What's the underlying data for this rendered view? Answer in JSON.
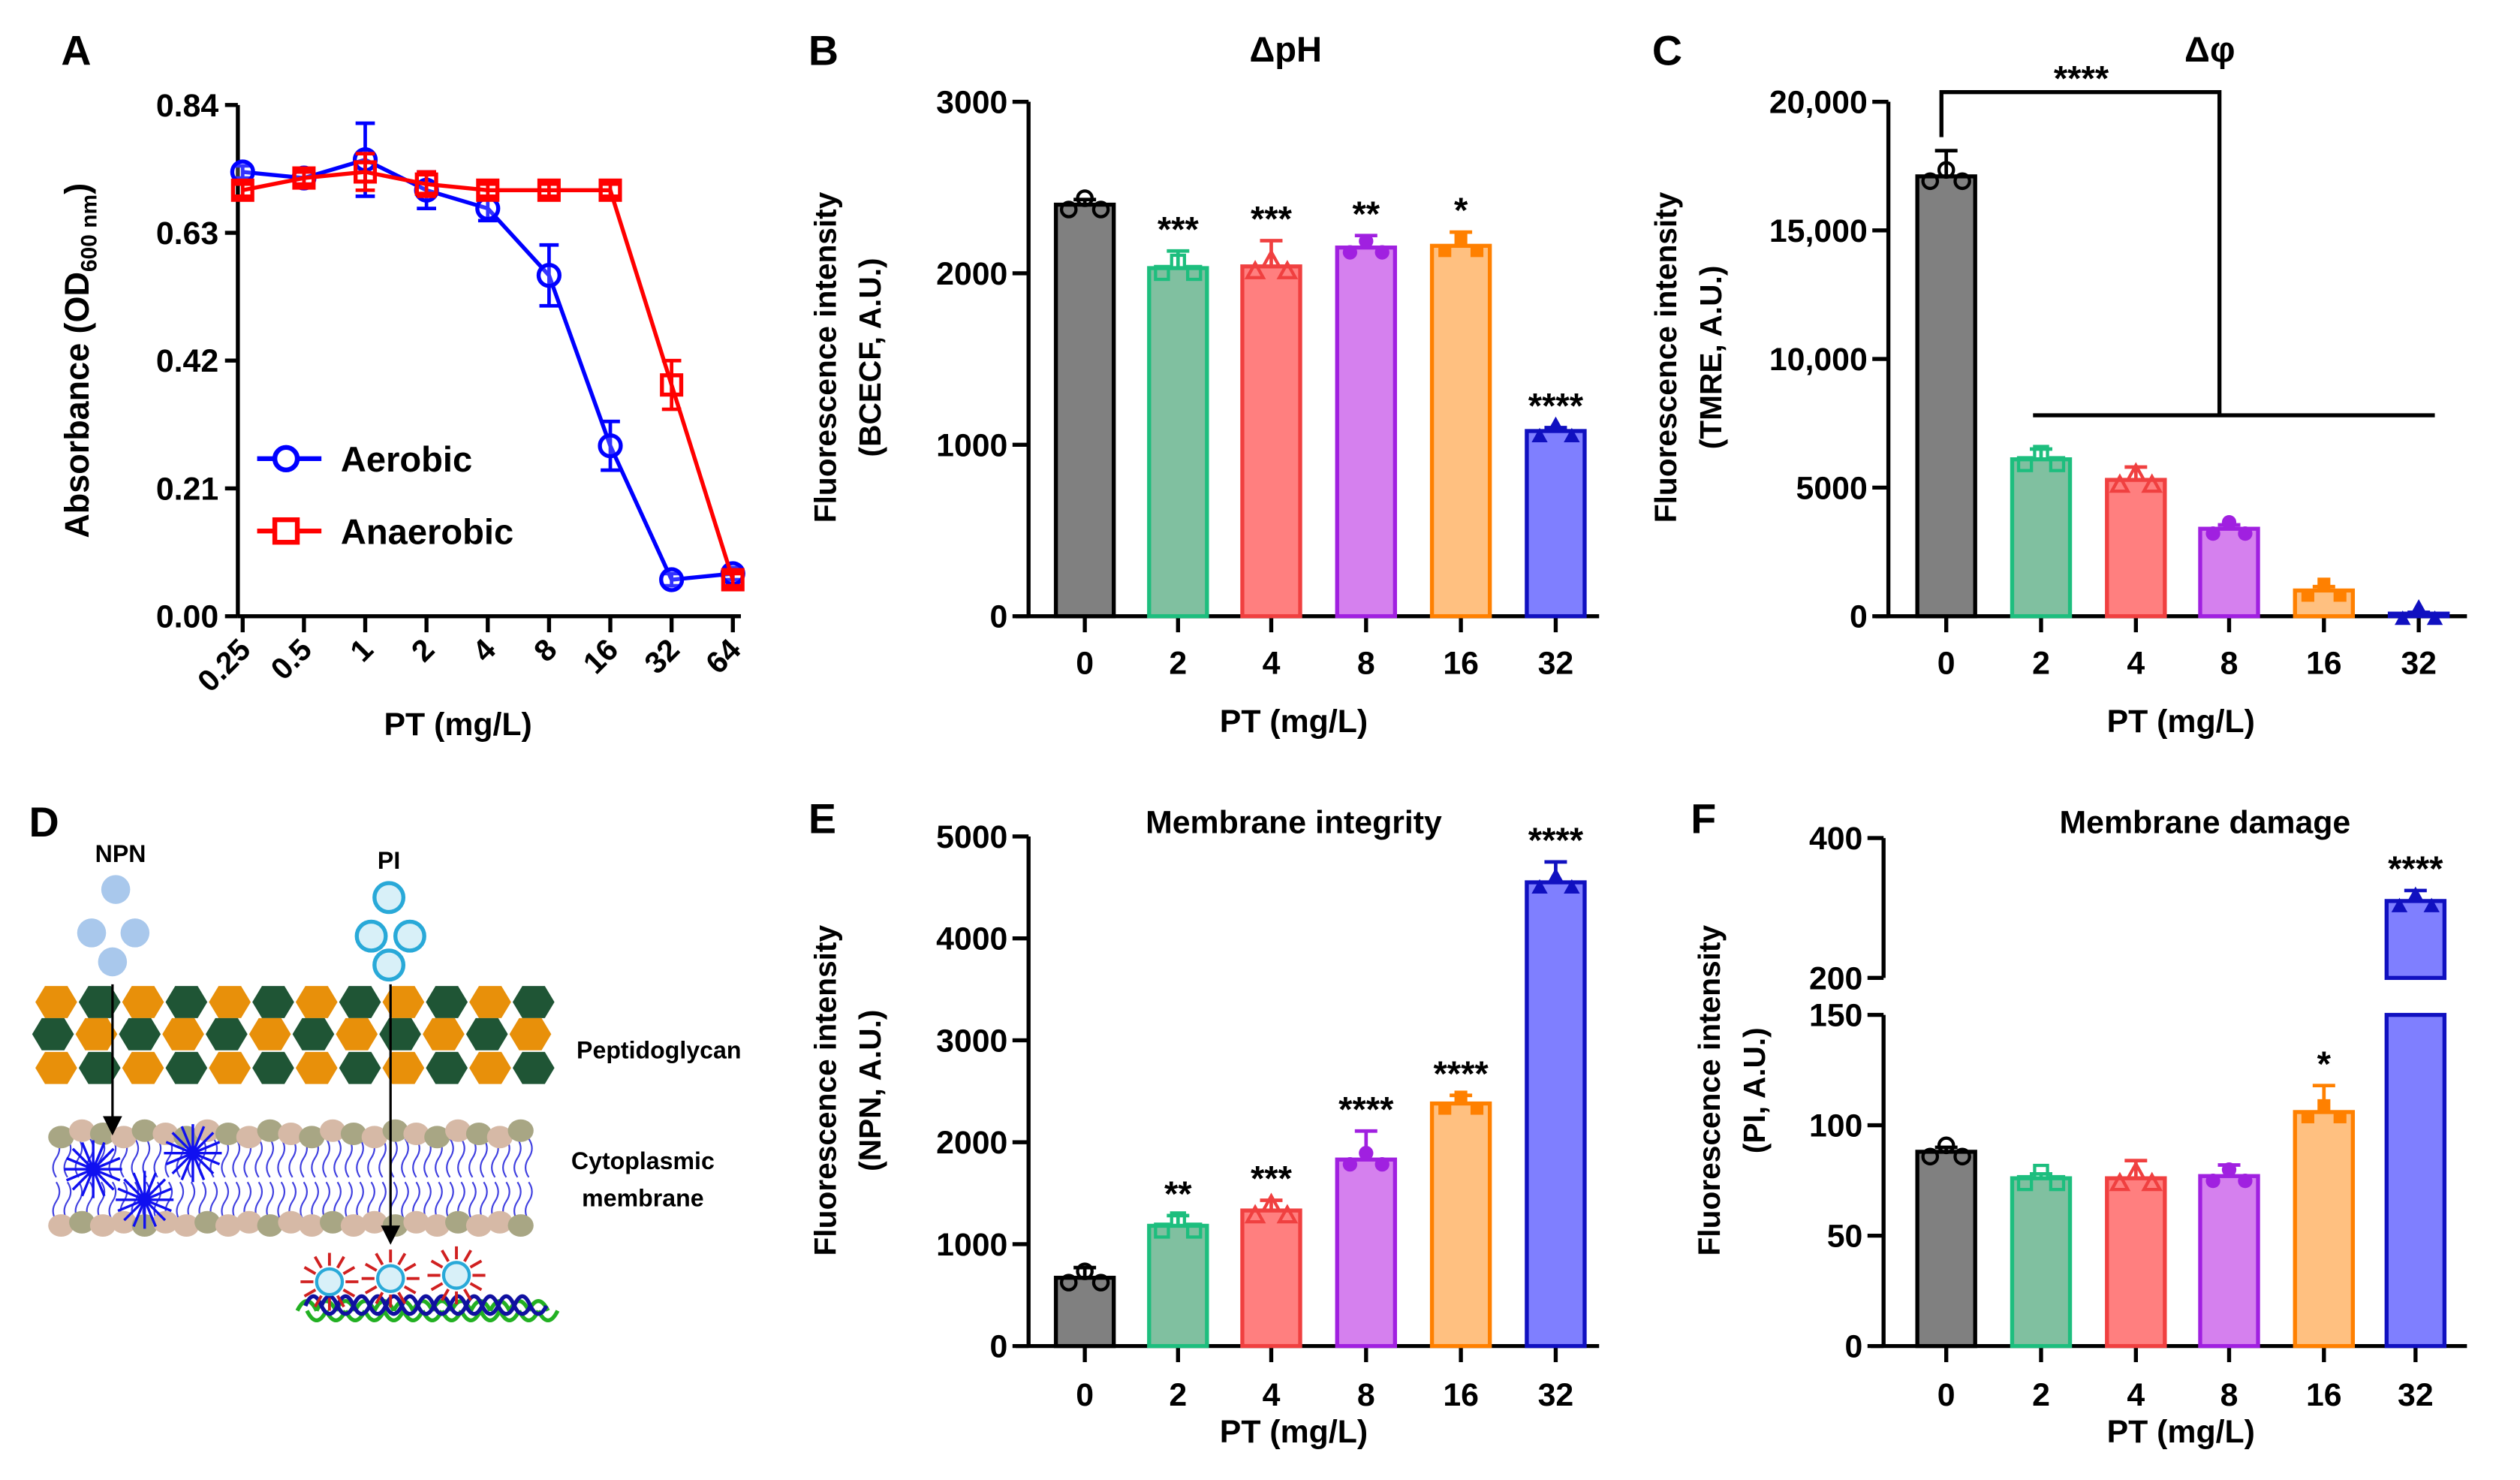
{
  "panel_letters": {
    "a": "A",
    "b": "B",
    "c": "C",
    "d": "D",
    "e": "E",
    "f": "F"
  },
  "diagram": {
    "npn_label": "NPN",
    "pi_label": "PI",
    "peptidoglycan_label": "Peptidoglycan",
    "membrane_label_line1": "Cytoplasmic",
    "membrane_label_line2": "membrane",
    "colors": {
      "hex_orange": "#E8900A",
      "hex_green": "#1F5535",
      "npn": "#A9C8EC",
      "pi": "#29A9D8",
      "tails": "#3F3FE0"
    }
  },
  "chart_data": [
    {
      "id": "A",
      "type": "line",
      "title": "",
      "ylabel_main": "Absorbance (OD",
      "ylabel_sub": "600 nm",
      "ylabel_close": ")",
      "xlabel": "PT (mg/L)",
      "categories": [
        "0.25",
        "0.5",
        "1",
        "2",
        "4",
        "8",
        "16",
        "32",
        "64"
      ],
      "ylim": [
        0,
        0.84
      ],
      "yticks": [
        "0.00",
        "0.21",
        "0.42",
        "0.63",
        "0.84"
      ],
      "legend_position": "bottom-left",
      "series": [
        {
          "name": "Aerobic",
          "marker": "circle",
          "color": "#0000FF",
          "values": [
            0.73,
            0.72,
            0.75,
            0.7,
            0.67,
            0.56,
            0.28,
            0.06,
            0.07
          ],
          "errors": [
            0.01,
            0.01,
            0.06,
            0.03,
            0.02,
            0.05,
            0.04,
            0.01,
            0.01
          ]
        },
        {
          "name": "Anaerobic",
          "marker": "square",
          "color": "#FF0000",
          "values": [
            0.7,
            0.72,
            0.73,
            0.71,
            0.7,
            0.7,
            0.7,
            0.38,
            0.06
          ],
          "errors": [
            0.01,
            0.01,
            0.03,
            0.02,
            0.01,
            0.01,
            0.01,
            0.04,
            0.01
          ]
        }
      ]
    },
    {
      "id": "B",
      "type": "bar",
      "title": "ΔpH",
      "ylabel_line1": "Fluorescence intensity",
      "ylabel_line2": "(BCECF, A.U.)",
      "xlabel": "PT (mg/L)",
      "categories": [
        "0",
        "2",
        "4",
        "8",
        "16",
        "32"
      ],
      "values": [
        2400,
        2030,
        2040,
        2150,
        2160,
        1080
      ],
      "errors": [
        30,
        100,
        150,
        70,
        80,
        20
      ],
      "significance": [
        "",
        "***",
        "***",
        "**",
        "*",
        "****"
      ],
      "ylim": [
        0,
        3000
      ],
      "yticks": [
        "0",
        "1000",
        "2000",
        "3000"
      ]
    },
    {
      "id": "C",
      "type": "bar",
      "title": "Δφ",
      "ylabel_line1": "Fluorescence intensity",
      "ylabel_line2": "(TMRE, A.U.)",
      "xlabel": "PT (mg/L)",
      "categories": [
        "0",
        "2",
        "4",
        "8",
        "16",
        "32"
      ],
      "values": [
        17100,
        6100,
        5300,
        3400,
        1000,
        100
      ],
      "errors": [
        1000,
        400,
        500,
        150,
        150,
        50
      ],
      "significance": [
        "",
        "",
        "",
        "",
        "",
        ""
      ],
      "bracket_label": "****",
      "ylim": [
        0,
        20000
      ],
      "yticks": [
        "0",
        "5000",
        "10,000",
        "15,000",
        "20,000"
      ]
    },
    {
      "id": "E",
      "type": "bar",
      "title": "Membrane integrity",
      "ylabel_line1": "Fluorescence intensity",
      "ylabel_line2": "(NPN, A.U.)",
      "xlabel": "PT (mg/L)",
      "categories": [
        "0",
        "2",
        "4",
        "8",
        "16",
        "32"
      ],
      "values": [
        670,
        1180,
        1330,
        1830,
        2380,
        4550
      ],
      "errors": [
        100,
        100,
        100,
        280,
        80,
        200
      ],
      "significance": [
        "",
        "**",
        "***",
        "****",
        "****",
        "****"
      ],
      "ylim": [
        0,
        5000
      ],
      "yticks": [
        "0",
        "1000",
        "2000",
        "3000",
        "4000",
        "5000"
      ]
    },
    {
      "id": "F",
      "type": "bar",
      "title": "Membrane damage",
      "ylabel_line1": "Fluorescence intensity",
      "ylabel_line2": "(PI, A.U.)",
      "xlabel": "PT (mg/L)",
      "categories": [
        "0",
        "2",
        "4",
        "8",
        "16",
        "32"
      ],
      "values": [
        88,
        76,
        76,
        77,
        106,
        310
      ],
      "errors": [
        2,
        2,
        8,
        5,
        12,
        15
      ],
      "significance": [
        "",
        "",
        "",
        "",
        "*",
        "****"
      ],
      "ylim": [
        0,
        400
      ],
      "axis_break": [
        150,
        200
      ],
      "yticks": [
        "0",
        "50",
        "100",
        "150",
        "200",
        "400"
      ]
    }
  ],
  "bar_colors": {
    "fills": [
      "#808080",
      "#80C0A0",
      "#FF7F7F",
      "#D580EE",
      "#FFC080",
      "#7F7FFF"
    ],
    "strokes": [
      "#000000",
      "#1DBE7E",
      "#F04040",
      "#A020E0",
      "#FF8000",
      "#1010C0"
    ]
  }
}
